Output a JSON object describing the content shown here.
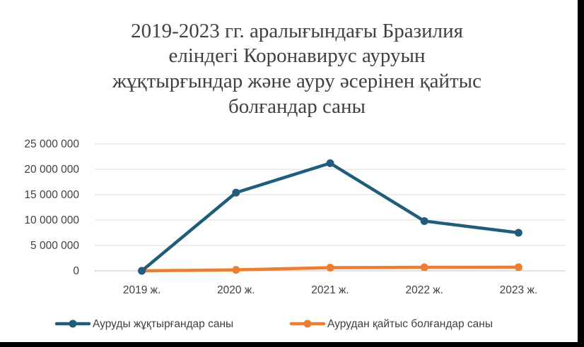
{
  "chart_data": {
    "type": "line",
    "title_lines": [
      "2019-2023 гг. аралығындағы  Бразилия",
      "еліндегі Коронавирус ауруын",
      "жұқтырғындар және ауру әсерінен қайтыс",
      "болғандар саны"
    ],
    "categories": [
      "2019 ж.",
      "2020 ж.",
      "2021 ж.",
      "2022 ж.",
      "2023 ж."
    ],
    "ylim": [
      0,
      25000000
    ],
    "yticks": [
      0,
      5000000,
      10000000,
      15000000,
      20000000,
      25000000
    ],
    "ytick_labels": [
      "0",
      "5 000 000",
      "10 000 000",
      "15 000 000",
      "20 000 000",
      "25 000 000"
    ],
    "grid": true,
    "legend_position": "bottom",
    "series": [
      {
        "name": "Ауруды жұқтырғандар саны",
        "color": "#1f5d7a",
        "values": [
          0,
          15400000,
          21200000,
          9800000,
          7500000
        ]
      },
      {
        "name": "Аурудан қайтыс болғандар саны",
        "color": "#ed7d31",
        "values": [
          0,
          194000,
          620000,
          690000,
          710000
        ]
      }
    ]
  }
}
